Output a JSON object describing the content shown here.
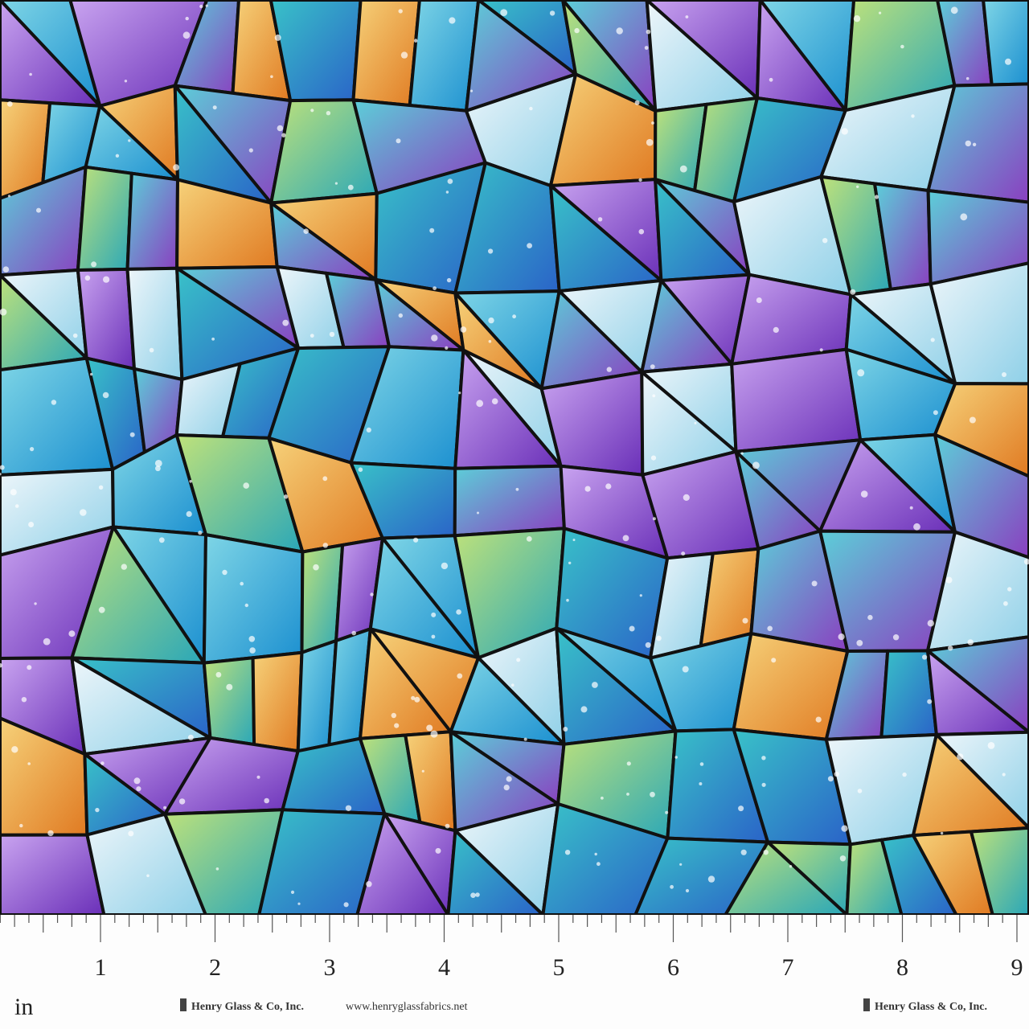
{
  "ruler": {
    "unit": "in",
    "labels": [
      "1",
      "2",
      "3",
      "4",
      "5",
      "6",
      "7",
      "8",
      "9"
    ]
  },
  "footer": {
    "brand_left": "Henry Glass & Co, Inc.",
    "website": "www.henryglassfabrics.net",
    "brand_right": "Henry Glass & Co, Inc."
  }
}
